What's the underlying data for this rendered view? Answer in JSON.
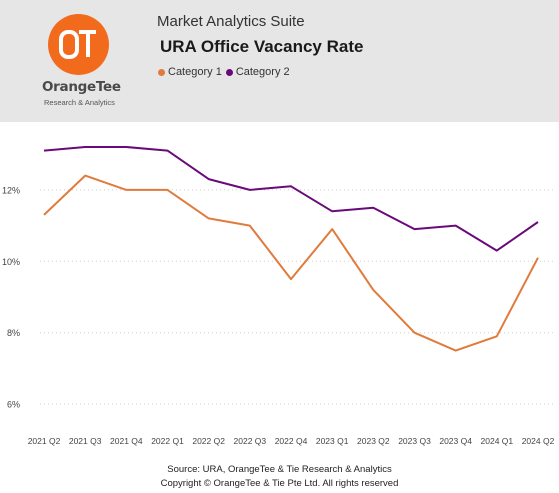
{
  "header": {
    "suite_title": "Market Analytics Suite",
    "chart_title": "URA Office Vacancy Rate",
    "logo": {
      "name": "OrangeTee",
      "tagline": "Research & Analytics",
      "mark": "OT",
      "color": "#f26b1d"
    }
  },
  "legend": [
    {
      "label": "Category 1",
      "color": "#e07b3c"
    },
    {
      "label": "Category 2",
      "color": "#6a0a7a"
    }
  ],
  "footer": {
    "source": "Source: URA, OrangeTee & Tie Research & Analytics",
    "copyright": "Copyright © OrangeTee & Tie Pte Ltd. All rights reserved"
  },
  "chart_data": {
    "type": "line",
    "title": "URA Office Vacancy Rate",
    "xlabel": "",
    "ylabel": "",
    "categories": [
      "2021 Q2",
      "2021 Q3",
      "2021 Q4",
      "2022 Q1",
      "2022 Q2",
      "2022 Q3",
      "2022 Q4",
      "2023 Q1",
      "2023 Q2",
      "2023 Q3",
      "2023 Q4",
      "2024 Q1",
      "2024 Q2"
    ],
    "series": [
      {
        "name": "Category 1",
        "color": "#e07b3c",
        "values": [
          11.3,
          12.4,
          12.0,
          12.0,
          11.2,
          11.0,
          9.5,
          10.9,
          9.2,
          8.0,
          7.5,
          7.9,
          10.1
        ]
      },
      {
        "name": "Category 2",
        "color": "#6a0a7a",
        "values": [
          13.1,
          13.2,
          13.2,
          13.1,
          12.3,
          12.0,
          12.1,
          11.4,
          11.5,
          10.9,
          11.0,
          10.3,
          11.1
        ]
      }
    ],
    "yticks": [
      6,
      8,
      10,
      12
    ],
    "ytick_labels": [
      "6%",
      "8%",
      "10%",
      "12%"
    ],
    "ylim": [
      5.5,
      13.9
    ],
    "grid": true,
    "legend_position": "top-left"
  }
}
